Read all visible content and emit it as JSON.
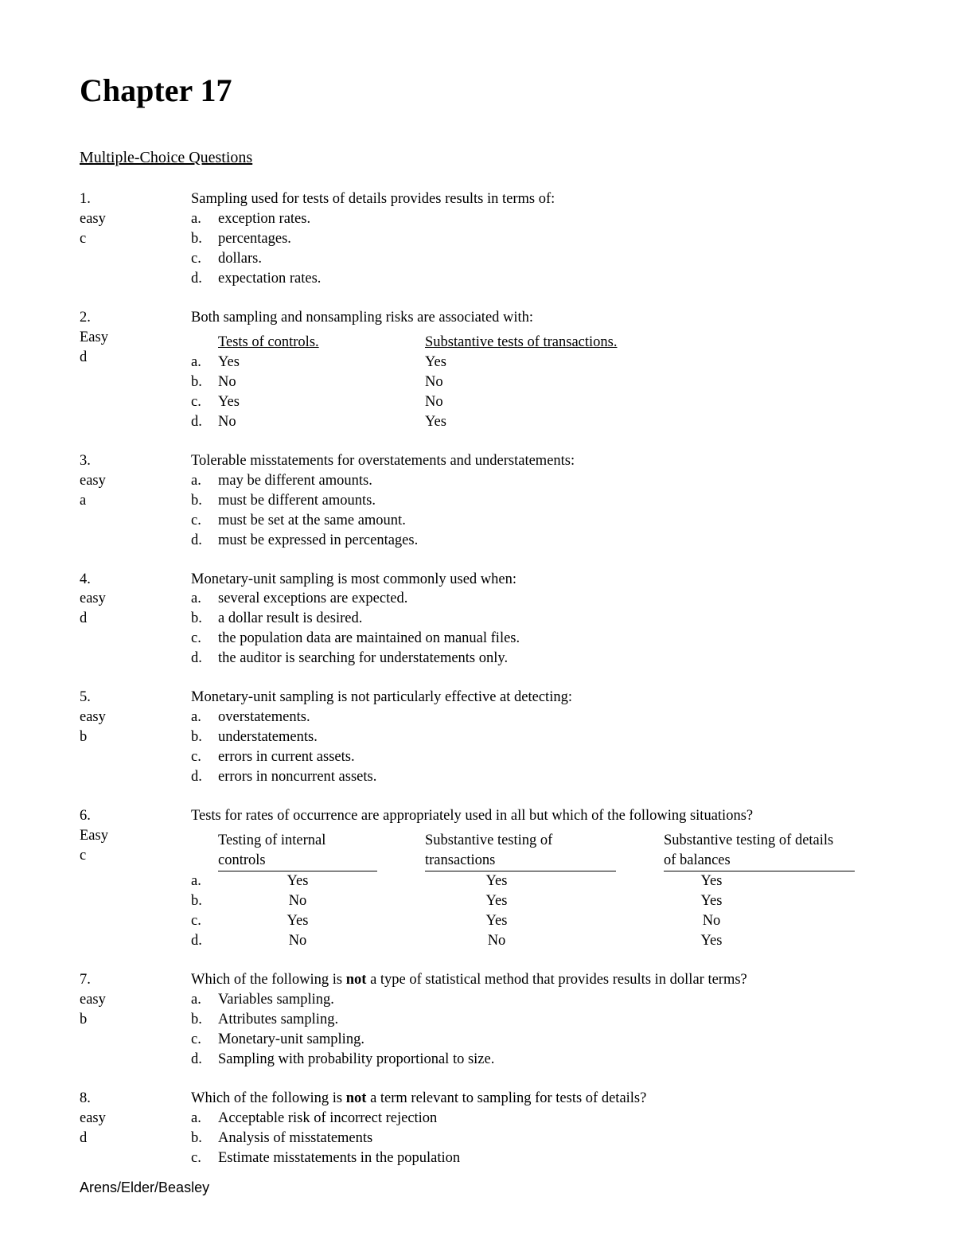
{
  "title": "Chapter 17",
  "section": "Multiple-Choice Questions",
  "footer": "Arens/Elder/Beasley",
  "questions": [
    {
      "num": "1.",
      "difficulty": "easy",
      "answer": "c",
      "stem": "Sampling used for tests of details provides results in terms of:",
      "type": "simple",
      "choices": [
        {
          "l": "a.",
          "t": "exception rates."
        },
        {
          "l": "b.",
          "t": "percentages."
        },
        {
          "l": "c.",
          "t": "dollars."
        },
        {
          "l": "d.",
          "t": "expectation rates."
        }
      ]
    },
    {
      "num": "2.",
      "difficulty": "Easy",
      "answer": "d",
      "stem": "Both sampling and nonsampling risks are associated with:",
      "type": "table2",
      "headers": [
        "Tests of controls.",
        "Substantive tests of transactions."
      ],
      "rows": [
        {
          "l": "a.",
          "cols": [
            "Yes",
            "Yes"
          ]
        },
        {
          "l": "b.",
          "cols": [
            "No",
            "No"
          ]
        },
        {
          "l": "c.",
          "cols": [
            "Yes",
            "No"
          ]
        },
        {
          "l": "d.",
          "cols": [
            "No",
            "Yes"
          ]
        }
      ]
    },
    {
      "num": "3.",
      "difficulty": "easy",
      "answer": "a",
      "stem": "Tolerable misstatements for overstatements and understatements:",
      "type": "simple",
      "choices": [
        {
          "l": "a.",
          "t": "may be different amounts."
        },
        {
          "l": "b.",
          "t": "must be different amounts."
        },
        {
          "l": "c.",
          "t": "must be set at the same amount."
        },
        {
          "l": "d.",
          "t": "must be expressed in percentages."
        }
      ]
    },
    {
      "num": "4.",
      "difficulty": "easy",
      "answer": "d",
      "stem": "Monetary-unit sampling is most commonly used when:",
      "type": "simple",
      "choices": [
        {
          "l": "a.",
          "t": "several exceptions are expected."
        },
        {
          "l": "b.",
          "t": "a dollar result is desired."
        },
        {
          "l": "c.",
          "t": "the population data are maintained on manual files."
        },
        {
          "l": "d.",
          "t": "the auditor is searching for understatements only."
        }
      ]
    },
    {
      "num": "5.",
      "difficulty": "easy",
      "answer": "b",
      "stem": "Monetary-unit sampling is not particularly effective at detecting:",
      "type": "simple",
      "choices": [
        {
          "l": "a.",
          "t": "overstatements."
        },
        {
          "l": "b.",
          "t": "understatements."
        },
        {
          "l": "c.",
          "t": "errors in current assets."
        },
        {
          "l": "d.",
          "t": "errors in noncurrent assets."
        }
      ]
    },
    {
      "num": "6.",
      "difficulty": "Easy",
      "answer": "c",
      "stem": "Tests for rates of occurrence are appropriately used in all but which of the following situations?",
      "type": "table3",
      "headers": [
        "Testing of internal controls",
        "Substantive testing of transactions",
        "Substantive testing of details of balances"
      ],
      "rows": [
        {
          "l": "a.",
          "cols": [
            "Yes",
            "Yes",
            "Yes"
          ]
        },
        {
          "l": "b.",
          "cols": [
            "No",
            "Yes",
            "Yes"
          ]
        },
        {
          "l": "c.",
          "cols": [
            "Yes",
            "Yes",
            "No"
          ]
        },
        {
          "l": "d.",
          "cols": [
            "No",
            "No",
            "Yes"
          ]
        }
      ]
    },
    {
      "num": "7.",
      "difficulty": "easy",
      "answer": "b",
      "stem_pre": "Which of the following is ",
      "stem_bold": "not",
      "stem_post": " a type of statistical method that provides results in dollar terms?",
      "type": "simple",
      "choices": [
        {
          "l": "a.",
          "t": "Variables sampling."
        },
        {
          "l": "b.",
          "t": "Attributes sampling."
        },
        {
          "l": "c.",
          "t": "Monetary-unit sampling."
        },
        {
          "l": "d.",
          "t": "Sampling with probability proportional to size."
        }
      ]
    },
    {
      "num": "8.",
      "difficulty": "easy",
      "answer": "d",
      "stem_pre": "Which of the following is ",
      "stem_bold": "not",
      "stem_post": " a term relevant to sampling for tests of details?",
      "type": "simple",
      "choices": [
        {
          "l": "a.",
          "t": "Acceptable risk of incorrect rejection"
        },
        {
          "l": "b.",
          "t": "Analysis of misstatements"
        },
        {
          "l": "c.",
          "t": "Estimate misstatements in the population"
        }
      ]
    }
  ]
}
